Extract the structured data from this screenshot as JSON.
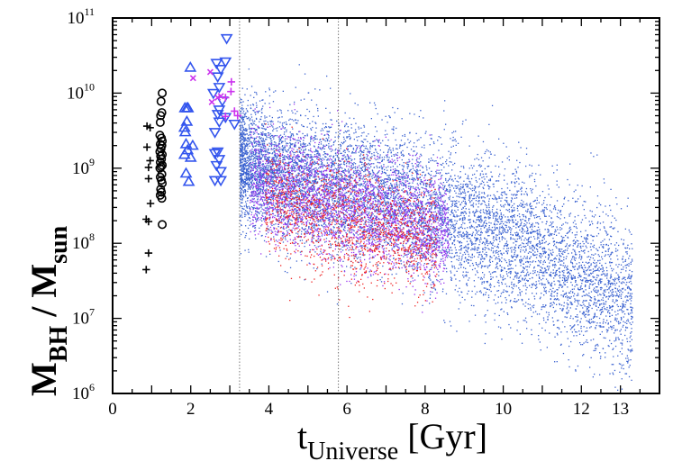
{
  "chart_data": {
    "type": "scatter",
    "title": "",
    "xlabel": {
      "main": "t",
      "sub": "Universe",
      "unit": " [Gyr]"
    },
    "ylabel": {
      "m1": "M",
      "s1": "BH",
      "slash": " / ",
      "m2": "M",
      "s2": "sun"
    },
    "xlim": [
      0,
      14
    ],
    "ylim": [
      1000000.0,
      100000000000.0
    ],
    "yscale": "log",
    "grid": false,
    "x_ticks": [
      "0",
      "2",
      "4",
      "6",
      "8",
      "10",
      "12",
      "13"
    ],
    "x_tick_values": [
      0,
      2,
      4,
      6,
      8,
      10,
      12,
      13
    ],
    "y_ticks": [
      {
        "base": "10",
        "exp": "6"
      },
      {
        "base": "10",
        "exp": "7"
      },
      {
        "base": "10",
        "exp": "8"
      },
      {
        "base": "10",
        "exp": "9"
      },
      {
        "base": "10",
        "exp": "10"
      },
      {
        "base": "10",
        "exp": "11"
      }
    ],
    "y_tick_values": [
      1000000.0,
      10000000.0,
      100000000.0,
      1000000000.0,
      10000000000.0,
      100000000000.0
    ],
    "vertical_reference_lines": [
      3.25,
      5.78
    ],
    "observations": [
      {
        "marker": "plus",
        "color": "#000000",
        "points": [
          [
            0.88,
            9.56
          ],
          [
            0.96,
            9.54
          ],
          [
            0.88,
            9.28
          ],
          [
            0.96,
            9.1
          ],
          [
            0.92,
            9.01
          ],
          [
            0.92,
            8.86
          ],
          [
            0.97,
            8.53
          ],
          [
            0.86,
            8.32
          ],
          [
            0.92,
            8.29
          ],
          [
            0.92,
            7.87
          ],
          [
            0.86,
            7.65
          ]
        ]
      },
      {
        "marker": "circle",
        "color": "#000000",
        "points": [
          [
            1.27,
            10.0
          ],
          [
            1.24,
            9.89
          ],
          [
            1.26,
            9.74
          ],
          [
            1.23,
            9.7
          ],
          [
            1.22,
            9.61
          ],
          [
            1.21,
            9.44
          ],
          [
            1.25,
            9.4
          ],
          [
            1.27,
            9.36
          ],
          [
            1.22,
            9.32
          ],
          [
            1.26,
            9.3
          ],
          [
            1.24,
            9.26
          ],
          [
            1.21,
            9.22
          ],
          [
            1.27,
            9.18
          ],
          [
            1.23,
            9.16
          ],
          [
            1.25,
            9.12
          ],
          [
            1.22,
            9.08
          ],
          [
            1.27,
            9.04
          ],
          [
            1.24,
            9.02
          ],
          [
            1.21,
            9.0
          ],
          [
            1.26,
            8.92
          ],
          [
            1.22,
            8.88
          ],
          [
            1.25,
            8.84
          ],
          [
            1.27,
            8.8
          ],
          [
            1.23,
            8.72
          ],
          [
            1.25,
            8.68
          ],
          [
            1.22,
            8.64
          ],
          [
            1.26,
            8.6
          ],
          [
            1.27,
            8.25
          ]
        ]
      },
      {
        "marker": "triangle-up",
        "color": "#3355ee",
        "points": [
          [
            1.99,
            10.34
          ],
          [
            1.85,
            9.8
          ],
          [
            1.9,
            9.8
          ],
          [
            1.93,
            9.8
          ],
          [
            1.9,
            9.62
          ],
          [
            1.84,
            9.54
          ],
          [
            1.86,
            9.48
          ],
          [
            1.88,
            9.32
          ],
          [
            2.05,
            9.3
          ],
          [
            1.92,
            9.24
          ],
          [
            1.84,
            9.18
          ],
          [
            2.0,
            9.14
          ],
          [
            1.88,
            8.93
          ],
          [
            1.95,
            8.82
          ]
        ]
      },
      {
        "marker": "triangle-down",
        "color": "#3355ee",
        "points": [
          [
            2.92,
            10.73
          ],
          [
            2.66,
            10.4
          ],
          [
            2.89,
            10.42
          ],
          [
            2.77,
            10.32
          ],
          [
            2.69,
            10.22
          ],
          [
            2.73,
            10.08
          ],
          [
            2.58,
            10.0
          ],
          [
            2.81,
            9.9
          ],
          [
            2.73,
            9.78
          ],
          [
            2.69,
            9.72
          ],
          [
            2.89,
            9.68
          ],
          [
            2.73,
            9.62
          ],
          [
            3.12,
            9.59
          ],
          [
            2.62,
            9.48
          ],
          [
            2.62,
            9.2
          ],
          [
            2.69,
            9.22
          ],
          [
            2.73,
            9.12
          ],
          [
            2.66,
            9.04
          ],
          [
            2.77,
            8.96
          ],
          [
            2.62,
            8.84
          ],
          [
            2.77,
            8.84
          ]
        ]
      },
      {
        "marker": "cross",
        "color": "#cc33ee",
        "points": [
          [
            2.06,
            10.2
          ],
          [
            2.5,
            10.28
          ],
          [
            2.54,
            9.88
          ],
          [
            2.69,
            9.94
          ],
          [
            2.77,
            9.96
          ]
        ]
      },
      {
        "marker": "plus",
        "color": "#cc33ee",
        "points": [
          [
            3.04,
            10.15
          ],
          [
            3.03,
            10.02
          ],
          [
            2.89,
            9.94
          ],
          [
            3.12,
            9.76
          ],
          [
            3.2,
            9.7
          ],
          [
            2.89,
            9.69
          ]
        ]
      }
    ],
    "simulation_clouds": [
      {
        "color": "#3a62d0",
        "t_range": [
          3.25,
          13.3
        ],
        "trend_t": [
          3.3,
          4,
          6,
          8,
          10,
          11,
          12,
          13
        ],
        "trend_logM_median": [
          9.1,
          8.95,
          8.75,
          8.45,
          8.1,
          7.85,
          7.55,
          7.3
        ],
        "trend_logM_scatter": [
          0.38,
          0.42,
          0.45,
          0.48,
          0.5,
          0.5,
          0.5,
          0.5
        ]
      },
      {
        "color": "#9a33f0",
        "t_range": [
          3.5,
          8.6
        ],
        "trend_t": [
          3.5,
          5,
          7,
          8.6
        ],
        "trend_logM_median": [
          8.85,
          8.6,
          8.35,
          8.15
        ],
        "trend_logM_scatter": [
          0.35,
          0.38,
          0.38,
          0.35
        ]
      },
      {
        "color": "#ee2222",
        "t_range": [
          3.9,
          8.3
        ],
        "trend_t": [
          3.9,
          5,
          6.5,
          8.3
        ],
        "trend_logM_median": [
          8.6,
          8.4,
          8.2,
          8.0
        ],
        "trend_logM_scatter": [
          0.35,
          0.38,
          0.38,
          0.35
        ]
      }
    ]
  }
}
